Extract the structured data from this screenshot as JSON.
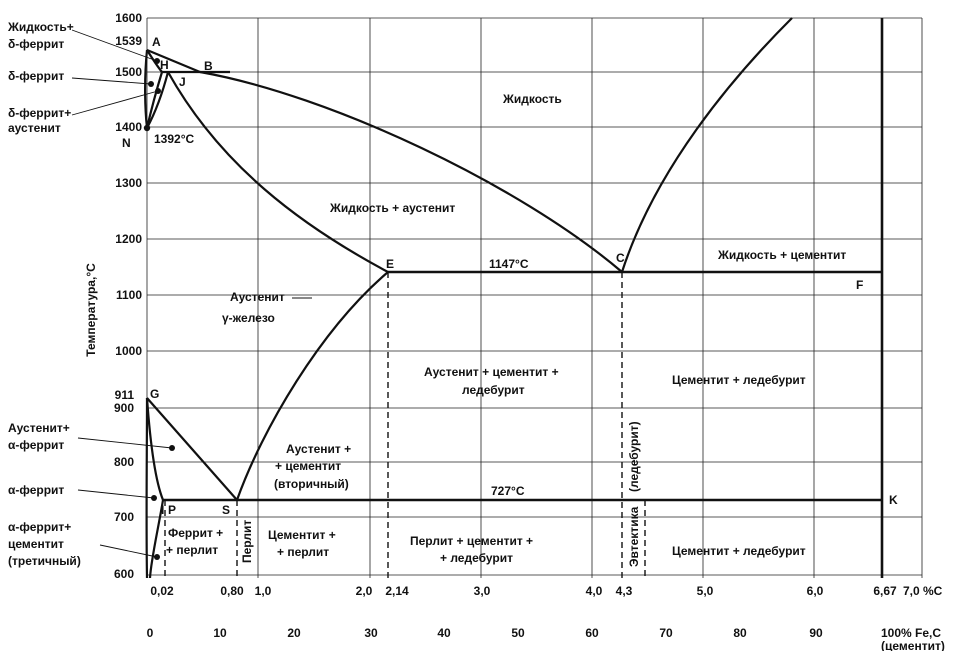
{
  "axis": {
    "y_title": "Температура,°С",
    "y_ticks": [
      "1600",
      "1500",
      "1400",
      "1300",
      "1200",
      "1100",
      "1000",
      "900",
      "800",
      "700",
      "600"
    ],
    "y_special": {
      "t1539": "1539",
      "t911": "911"
    },
    "x_carbon": [
      "0,02",
      "0,80",
      "1,0",
      "2,0",
      "2,14",
      "3,0",
      "4,0",
      "4,3",
      "5,0",
      "6,0",
      "6,67",
      "7,0 %C"
    ],
    "x_cementite": [
      "0",
      "10",
      "20",
      "30",
      "40",
      "50",
      "60",
      "70",
      "80",
      "90",
      "100% Fe,C"
    ],
    "x_cementite_note": "(цементит)"
  },
  "points": {
    "A": "A",
    "B": "B",
    "H": "H",
    "J": "J",
    "N": "N",
    "E": "E",
    "C": "C",
    "F": "F",
    "G": "G",
    "P": "P",
    "S": "S",
    "K": "K"
  },
  "temps": {
    "t1392": "1392°С",
    "t1147": "1147°С",
    "t727": "727°С"
  },
  "regions": {
    "liquid": "Жидкость",
    "liquid_austenite": "Жидкость + аустенит",
    "liquid_cementite": "Жидкость + цементит",
    "austenite": "Аустенит",
    "gamma_iron": "γ-железо",
    "aust_cem_led_1": "Аустенит + цементит +",
    "aust_cem_led_2": "ледебурит",
    "cem_led_upper": "Цементит + ледебурит",
    "aust_cem2_1": "Аустенит +",
    "aust_cem2_2": "+ цементит",
    "aust_cem2_3": "(вторичный)",
    "ferrite_perlite_1": "Феррит +",
    "ferrite_perlite_2": "+ перлит",
    "perlite": "Перлит",
    "cem_perlite_1": "Цементит +",
    "cem_perlite_2": "+ перлит",
    "perl_cem_led_1": "Перлит + цементит +",
    "perl_cem_led_2": "+ ледебурит",
    "eutectic": "Эвтектика",
    "ledeburite": "(ледебурит)",
    "cem_led_lower": "Цементит + ледебурит"
  },
  "callouts": {
    "liq_delta_1": "Жидкость+",
    "liq_delta_2": "δ-феррит",
    "delta": "δ-феррит",
    "delta_aust_1": "δ-феррит+",
    "delta_aust_2": "аустенит",
    "aust_alpha_1": "Аустенит+",
    "aust_alpha_2": "α-феррит",
    "alpha": "α-феррит",
    "alpha_cem_1": "α-феррит+",
    "alpha_cem_2": "цементит",
    "alpha_cem_3": "(третичный)"
  }
}
